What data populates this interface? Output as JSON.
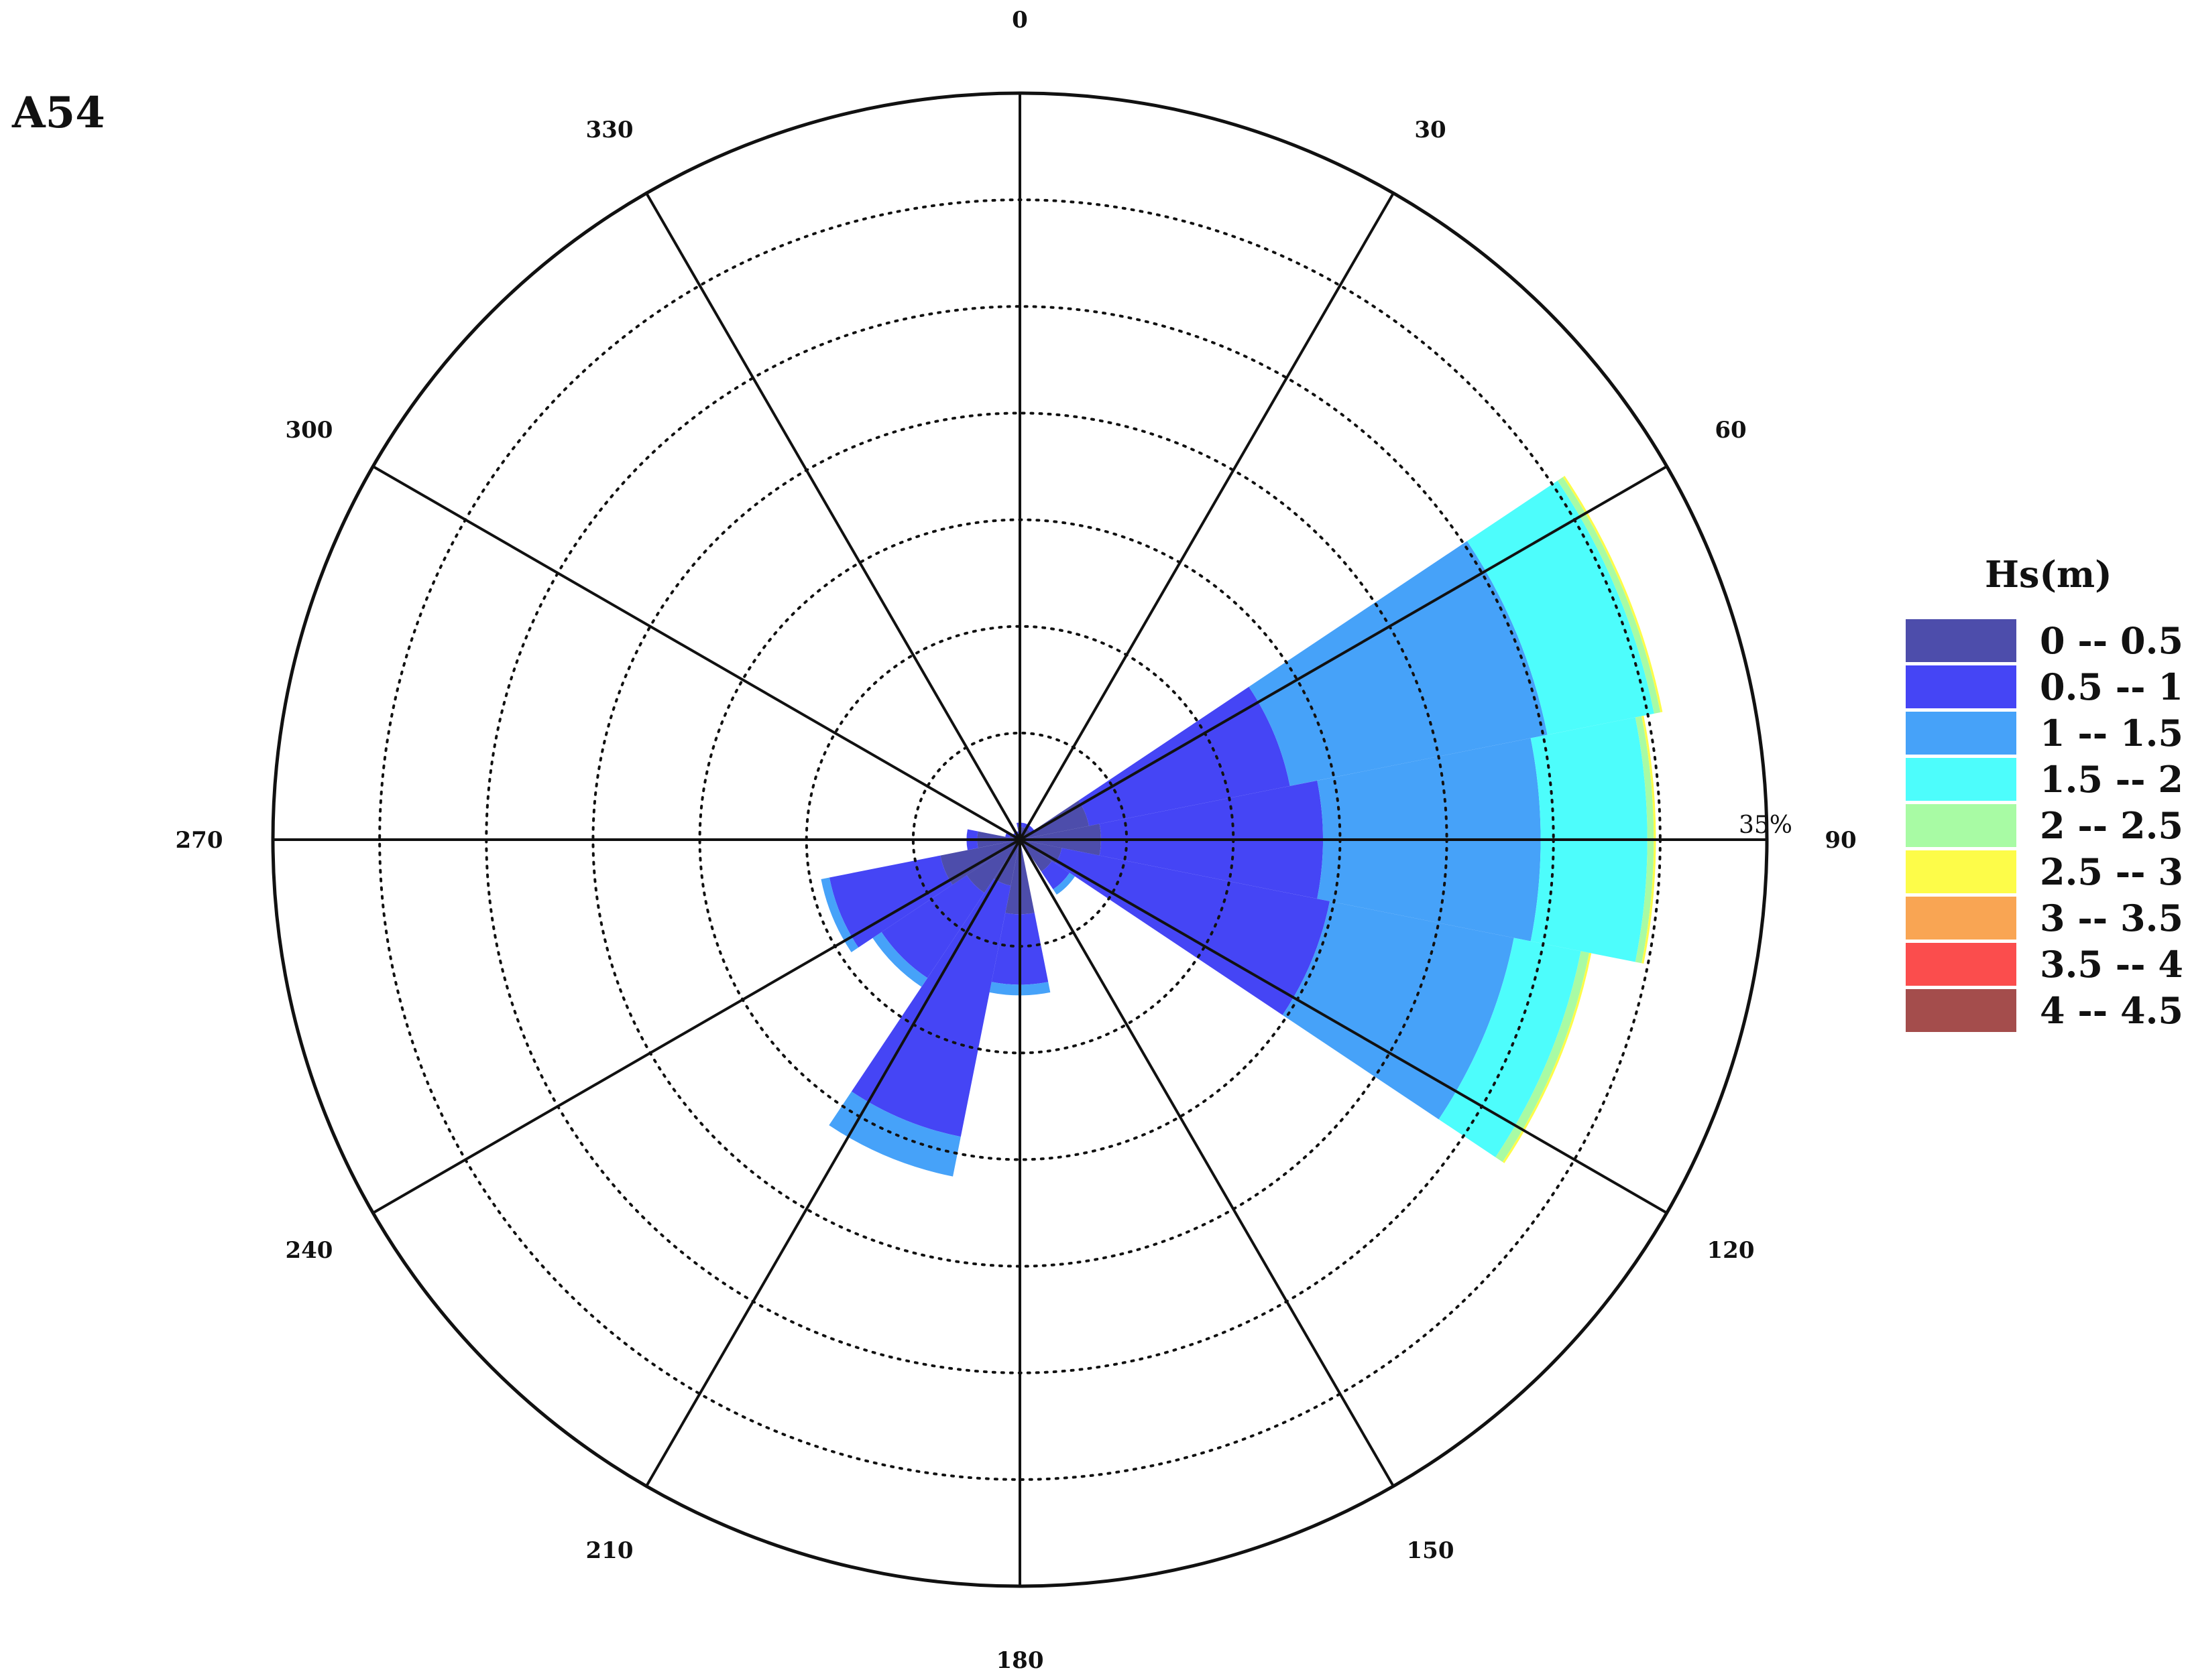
{
  "chart_data": {
    "type": "wind-rose",
    "title": "A54",
    "directions": [
      0,
      30,
      60,
      90,
      120,
      150,
      180,
      210,
      240,
      270,
      300,
      330
    ],
    "direction_labels": [
      "0",
      "30",
      "60",
      "90",
      "120",
      "150",
      "180",
      "210",
      "240",
      "270",
      "300",
      "330"
    ],
    "radial_max": 35,
    "ring_step": 5,
    "ring_label": "35%",
    "legend_title": "Hs(m)",
    "classes": [
      {
        "label": "0 -- 0.5",
        "color": "#4d4dab"
      },
      {
        "label": "0.5 -- 1",
        "color": "#4545f5"
      },
      {
        "label": "1 -- 1.5",
        "color": "#46a2f9"
      },
      {
        "label": "1.5 -- 2",
        "color": "#4dfdfc"
      },
      {
        "label": "2 -- 2.5",
        "color": "#a8fba4"
      },
      {
        "label": "2.5 -- 3",
        "color": "#fdfc49"
      },
      {
        "label": "3 -- 3.5",
        "color": "#f9a553"
      },
      {
        "label": "3.5 -- 4",
        "color": "#fb4d4d"
      },
      {
        "label": "4 -- 4.5",
        "color": "#a44d4c"
      }
    ],
    "sector_width_deg": 22.5,
    "sectors": [
      {
        "direction": 0,
        "values": [
          0.6,
          0.2,
          0,
          0,
          0,
          0,
          0,
          0,
          0
        ]
      },
      {
        "direction": 22.5,
        "values": [
          0.6,
          0.2,
          0,
          0,
          0,
          0,
          0,
          0,
          0
        ]
      },
      {
        "direction": 45,
        "values": [
          0.6,
          0.2,
          0,
          0,
          0,
          0,
          0,
          0,
          0
        ]
      },
      {
        "direction": 67.5,
        "values": [
          3.3,
          9.6,
          12.3,
          5.1,
          0.3,
          0.1,
          0,
          0,
          0
        ]
      },
      {
        "direction": 90,
        "values": [
          3.8,
          10.4,
          10.2,
          5.0,
          0.3,
          0.1,
          0,
          0,
          0
        ]
      },
      {
        "direction": 112.5,
        "values": [
          2.0,
          12.8,
          8.8,
          3.2,
          0.4,
          0.1,
          0,
          0,
          0
        ]
      },
      {
        "direction": 135,
        "values": [
          1.8,
          1.0,
          0.3,
          0,
          0,
          0,
          0,
          0,
          0
        ]
      },
      {
        "direction": 157.5,
        "values": [
          0,
          0,
          0,
          0,
          0,
          0,
          0,
          0,
          0
        ]
      },
      {
        "direction": 180,
        "values": [
          3.5,
          3.3,
          0.5,
          0,
          0,
          0,
          0,
          0,
          0
        ]
      },
      {
        "direction": 202.5,
        "values": [
          2.2,
          12.0,
          1.9,
          0,
          0,
          0,
          0,
          0,
          0
        ]
      },
      {
        "direction": 225,
        "values": [
          3.0,
          4.8,
          0.5,
          0,
          0,
          0,
          0,
          0,
          0
        ]
      },
      {
        "direction": 247.5,
        "values": [
          3.8,
          5.3,
          0.4,
          0,
          0,
          0,
          0,
          0,
          0
        ]
      },
      {
        "direction": 270,
        "values": [
          2.0,
          0.5,
          0,
          0,
          0,
          0,
          0,
          0,
          0
        ]
      },
      {
        "direction": 292.5,
        "values": [
          0.5,
          0.2,
          0,
          0,
          0,
          0,
          0,
          0,
          0
        ]
      },
      {
        "direction": 315,
        "values": [
          0.3,
          0.1,
          0,
          0,
          0,
          0,
          0,
          0,
          0
        ]
      },
      {
        "direction": 337.5,
        "values": [
          0.3,
          0.1,
          0,
          0,
          0,
          0,
          0,
          0,
          0
        ]
      }
    ]
  }
}
